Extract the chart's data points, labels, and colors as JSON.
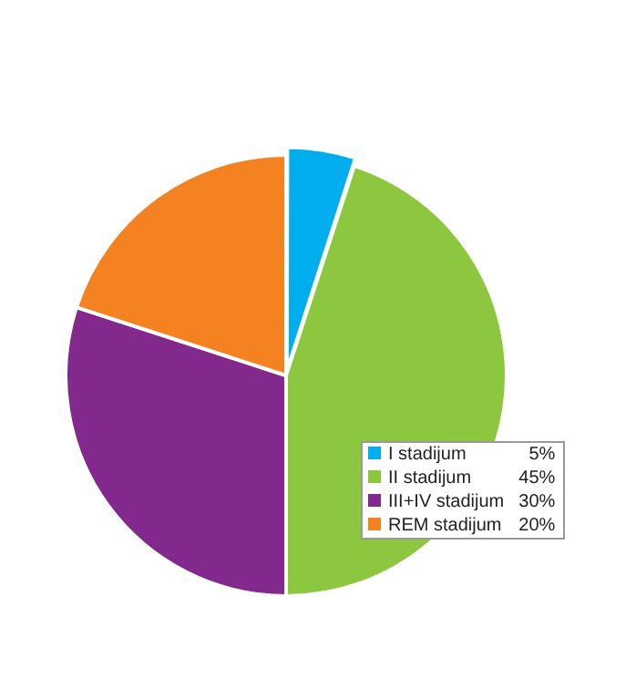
{
  "chart_data": {
    "type": "pie",
    "categories": [
      "I stadijum",
      "II stadijum",
      "III+IV stadijum",
      "REM stadijum"
    ],
    "values": [
      5,
      45,
      30,
      20
    ],
    "value_labels": [
      "5%",
      "45%",
      "30%",
      "20%"
    ],
    "colors": [
      "#00aeef",
      "#8dc63f",
      "#83298e",
      "#f58220"
    ],
    "legend": "bottom right"
  }
}
